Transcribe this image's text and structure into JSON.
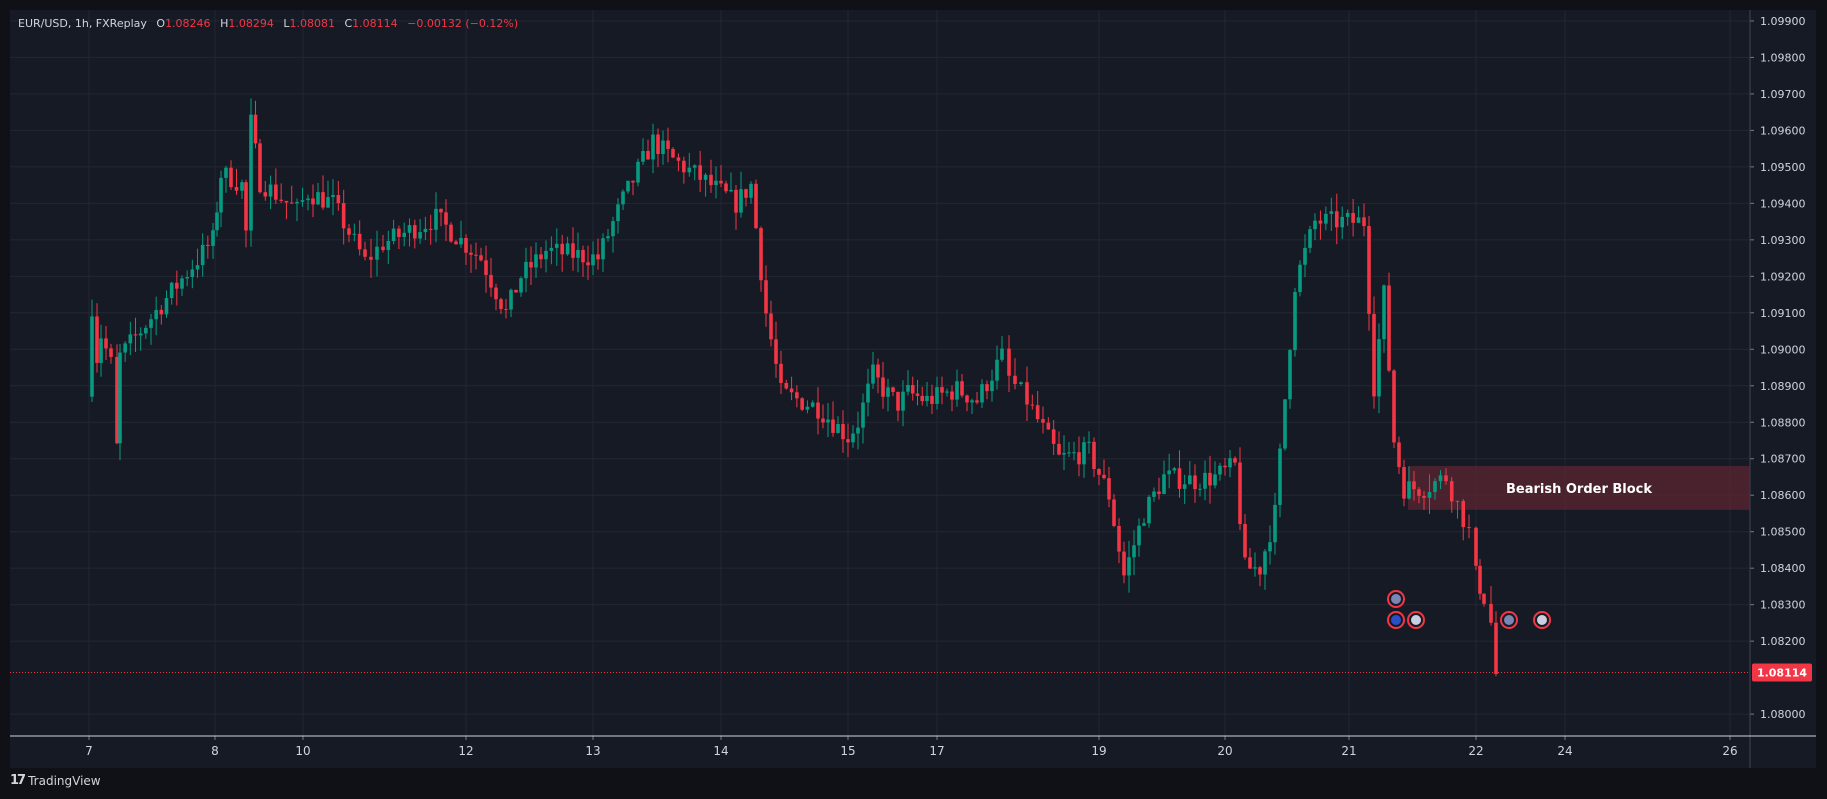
{
  "legend": {
    "symbol": "EUR/USD, 1h, FXReplay",
    "open_label": "O",
    "open": "1.08246",
    "high_label": "H",
    "high": "1.08294",
    "low_label": "L",
    "low": "1.08081",
    "close_label": "C",
    "close": "1.08114",
    "change": "−0.00132 (−0.12%)"
  },
  "footer": {
    "brand": "TradingView",
    "logo_icon": "tradingview-logo-icon"
  },
  "colors": {
    "up": "#089981",
    "down": "#f23645",
    "bg": "#161a25",
    "grid": "#232733",
    "text": "#d1d4dc",
    "zone": "#5b2530"
  },
  "chart_data": {
    "type": "candlestick",
    "symbol": "EUR/USD",
    "timeframe": "1h",
    "x_ticks": [
      "7",
      "8",
      "10",
      "12",
      "13",
      "14",
      "15",
      "17",
      "19",
      "20",
      "21",
      "22",
      "24",
      "26"
    ],
    "y_ticks": [
      "1.09900",
      "1.09800",
      "1.09700",
      "1.09600",
      "1.09500",
      "1.09400",
      "1.09300",
      "1.09200",
      "1.09100",
      "1.09000",
      "1.08900",
      "1.08800",
      "1.08700",
      "1.08600",
      "1.08500",
      "1.08400",
      "1.08300",
      "1.08200",
      "1.08000"
    ],
    "ylim": [
      1.0794,
      1.0993
    ],
    "last_price": "1.08114",
    "grid": true,
    "path": [
      [
        "7",
        0,
        1.0887
      ],
      [
        "7",
        3,
        1.0912
      ],
      [
        "7",
        8,
        1.0898
      ],
      [
        "7",
        12,
        1.0904
      ],
      [
        "7",
        22,
        1.0896
      ],
      [
        "7",
        28,
        1.0873
      ],
      [
        "7",
        31,
        1.0898
      ],
      [
        "8",
        -2,
        1.093
      ],
      [
        "8",
        6,
        1.0948
      ],
      [
        "8",
        16,
        1.0947
      ],
      [
        "8",
        27,
        1.0945
      ],
      [
        "8",
        31,
        1.0932
      ],
      [
        "8",
        36,
        1.0962
      ],
      [
        "8",
        45,
        1.0946
      ],
      [
        "10",
        -6,
        1.0938
      ],
      [
        "10",
        5,
        1.0943
      ],
      [
        "10",
        30,
        1.094
      ],
      [
        "10",
        62,
        1.0924
      ],
      [
        "10",
        80,
        1.0929
      ],
      [
        "12",
        -30,
        1.0936
      ],
      [
        "12",
        15,
        1.0925
      ],
      [
        "12",
        40,
        1.091
      ],
      [
        "12",
        55,
        1.092
      ],
      [
        "12",
        80,
        1.0927
      ],
      [
        "13",
        -20,
        1.0926
      ],
      [
        "13",
        5,
        1.0925
      ],
      [
        "13",
        30,
        1.0941
      ],
      [
        "13",
        60,
        1.0957
      ],
      [
        "13",
        80,
        1.0952
      ],
      [
        "14",
        -10,
        1.0945
      ],
      [
        "14",
        15,
        1.094
      ],
      [
        "14",
        30,
        1.0945
      ],
      [
        "14",
        45,
        1.091
      ],
      [
        "14",
        60,
        1.0888
      ],
      [
        "15",
        -30,
        1.0884
      ],
      [
        "15",
        0,
        1.0876
      ],
      [
        "15",
        10,
        1.088
      ],
      [
        "15",
        25,
        1.0893
      ],
      [
        "15",
        35,
        1.0889
      ],
      [
        "15",
        50,
        1.0885
      ],
      [
        "15",
        60,
        1.0888
      ],
      [
        "17",
        -10,
        1.0886
      ],
      [
        "17",
        20,
        1.0889
      ],
      [
        "17",
        40,
        1.0886
      ],
      [
        "17",
        65,
        1.0898
      ],
      [
        "17",
        72,
        1.0892
      ],
      [
        "17",
        90,
        1.0886
      ],
      [
        "19",
        -40,
        1.087
      ],
      [
        "19",
        -10,
        1.0872
      ],
      [
        "19",
        10,
        1.086
      ],
      [
        "19",
        25,
        1.0838
      ],
      [
        "19",
        45,
        1.0855
      ],
      [
        "19",
        65,
        1.0865
      ],
      [
        "20",
        -30,
        1.0864
      ],
      [
        "20",
        -10,
        1.0865
      ],
      [
        "20",
        10,
        1.0868
      ],
      [
        "20",
        20,
        1.084
      ],
      [
        "20",
        35,
        1.084
      ],
      [
        "20",
        50,
        1.0855
      ],
      [
        "20",
        70,
        1.0918
      ],
      [
        "20",
        90,
        1.0935
      ],
      [
        "21",
        15,
        1.0935
      ],
      [
        "21",
        25,
        1.089
      ],
      [
        "21",
        35,
        1.0915
      ],
      [
        "21",
        45,
        1.0875
      ],
      [
        "21",
        55,
        1.0862
      ],
      [
        "21",
        75,
        1.0862
      ],
      [
        "21",
        97,
        1.0865
      ],
      [
        "22",
        -7,
        1.085
      ],
      [
        "22",
        0,
        1.0838
      ],
      [
        "22",
        8,
        1.0832
      ],
      [
        "22",
        15,
        1.0825
      ],
      [
        "22",
        20,
        1.0811
      ]
    ],
    "annotations": [
      {
        "type": "zone",
        "label": "Bearish Order Block",
        "y_range": [
          1.0856,
          1.0868
        ],
        "x_from": "21"
      }
    ],
    "events": [
      {
        "x": "21",
        "row": "top",
        "icon": "uk-flag-icon"
      },
      {
        "x": "21",
        "row": "bottom",
        "icon": "eu-flag-icon"
      },
      {
        "x": "21",
        "row": "bottom",
        "icon": "us-flag-icon"
      },
      {
        "x": "22",
        "row": "bottom",
        "icon": "uk-flag-icon"
      },
      {
        "x": "22",
        "row": "bottom",
        "icon": "us-flag-icon"
      }
    ]
  }
}
